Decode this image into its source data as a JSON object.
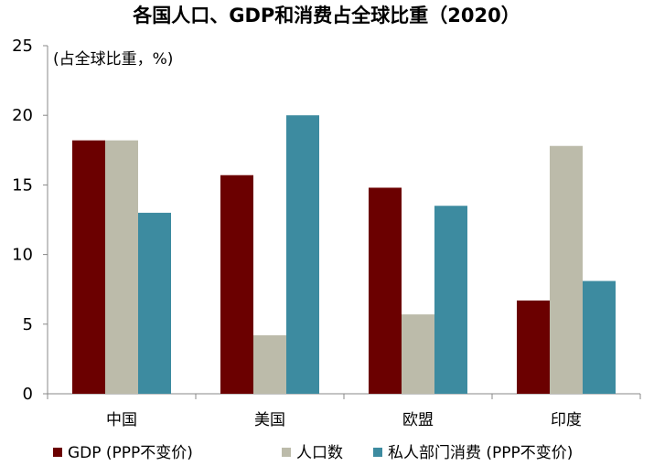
{
  "chart_data": {
    "type": "bar",
    "title": "各国人口、GDP和消费占全球比重（2020）",
    "unit_label": "(占全球比重，%)",
    "categories": [
      "中国",
      "美国",
      "欧盟",
      "印度"
    ],
    "series": [
      {
        "name": "GDP (PPP不变价)",
        "color": "#6b0000",
        "values": [
          18.2,
          15.7,
          14.8,
          6.7
        ]
      },
      {
        "name": "人口数",
        "color": "#bcbbaa",
        "values": [
          18.2,
          4.2,
          5.7,
          17.8
        ]
      },
      {
        "name": "私人部门消费 (PPP不变价)",
        "color": "#3d8ba0",
        "values": [
          13.0,
          20.0,
          13.5,
          8.1
        ]
      }
    ],
    "yticks": [
      "0",
      "5",
      "10",
      "15",
      "20",
      "25"
    ],
    "ylim": [
      0,
      25
    ],
    "legend_position": "bottom",
    "grid": false
  }
}
